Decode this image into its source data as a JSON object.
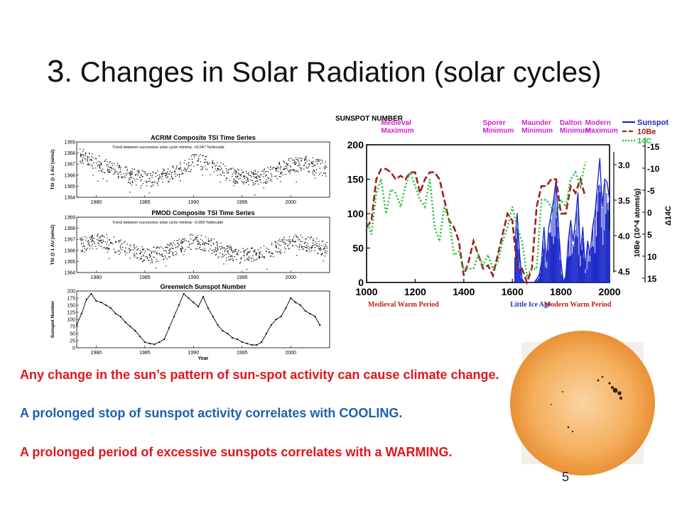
{
  "title": {
    "number": "3",
    "text": ". Changes in Solar Radiation (solar cycles)"
  },
  "body": {
    "line1": "Any change in the sun’s pattern of sun-spot activity can cause climate change.",
    "line2": "A prolonged stop of sunspot activity correlates with COOLING.",
    "line3": "A prolonged period of excessive sunspots correlates with a WARMING."
  },
  "slide_number": "5",
  "colors": {
    "text_red": "#e1161b",
    "text_blue": "#1f5fad",
    "series_sunspot": "#1a28c8",
    "series_be": "#a01e1e",
    "series_c": "#22c13b",
    "label_magenta": "#d61fd0"
  },
  "chart_data": [
    {
      "type": "scatter",
      "title": "ACRIM Composite TSI Time Series",
      "annotation": "Trend between successive solar cycle minima: +0.047 %/decade",
      "ylabel": "TSI @ 1 AU (w/m2)",
      "xticks": [
        "1980",
        "1985",
        "1990",
        "1995",
        "2000"
      ],
      "yticks": [
        "1364",
        "1365",
        "1366",
        "1367",
        "1368",
        "1369"
      ],
      "xlim": [
        1978,
        2004
      ],
      "ylim": [
        1364,
        1369
      ],
      "x": [
        1978.5,
        1979.5,
        1980.5,
        1981.5,
        1982.5,
        1983.5,
        1984.5,
        1985.5,
        1986.5,
        1987.5,
        1988.5,
        1989.5,
        1990.5,
        1991.5,
        1992.5,
        1993.5,
        1994.5,
        1995.5,
        1996.5,
        1997.5,
        1998.5,
        1999.5,
        2000.5,
        2001.5,
        2002.5,
        2003.5
      ],
      "values": [
        1367.8,
        1367.4,
        1367.0,
        1366.7,
        1366.3,
        1366.0,
        1365.8,
        1365.7,
        1365.8,
        1366.1,
        1366.6,
        1367.1,
        1367.3,
        1367.0,
        1366.6,
        1366.2,
        1365.9,
        1365.8,
        1365.8,
        1366.0,
        1366.4,
        1366.8,
        1367.0,
        1367.1,
        1366.9,
        1366.6
      ]
    },
    {
      "type": "scatter",
      "title": "PMOD Composite TSI Time Series",
      "annotation": "Trend between successive solar cycle minima: -0.009 %/decade",
      "ylabel": "TSI @ 1 AU (w/m2)",
      "xticks": [
        "1980",
        "1985",
        "1990",
        "1995",
        "2000"
      ],
      "yticks": [
        "1364",
        "1365",
        "1366",
        "1367",
        "1368",
        "1369"
      ],
      "xlim": [
        1978,
        2004
      ],
      "ylim": [
        1364,
        1369
      ],
      "x": [
        1978.5,
        1979.5,
        1980.5,
        1981.5,
        1982.5,
        1983.5,
        1984.5,
        1985.5,
        1986.5,
        1987.5,
        1988.5,
        1989.5,
        1990.5,
        1991.5,
        1992.5,
        1993.5,
        1994.5,
        1995.5,
        1996.5,
        1997.5,
        1998.5,
        1999.5,
        2000.5,
        2001.5,
        2002.5,
        2003.5
      ],
      "values": [
        1366.6,
        1366.8,
        1366.9,
        1366.7,
        1366.3,
        1366.0,
        1365.7,
        1365.6,
        1365.7,
        1366.0,
        1366.5,
        1366.8,
        1366.8,
        1366.6,
        1366.2,
        1365.9,
        1365.7,
        1365.6,
        1365.7,
        1365.9,
        1366.3,
        1366.6,
        1366.8,
        1366.7,
        1366.5,
        1366.2
      ]
    },
    {
      "type": "line",
      "title": "Greenwich Sunspot Number",
      "xlabel": "Year",
      "ylabel": "Sunspot Number",
      "xticks": [
        "1980",
        "1985",
        "1990",
        "1995",
        "2000"
      ],
      "yticks": [
        "0",
        "25",
        "50",
        "75",
        "100",
        "125",
        "150",
        "175",
        "200"
      ],
      "xlim": [
        1978,
        2004
      ],
      "ylim": [
        0,
        200
      ],
      "x": [
        1978.0,
        1978.5,
        1979.0,
        1979.5,
        1980.0,
        1980.5,
        1981.0,
        1981.5,
        1982.0,
        1982.5,
        1983.0,
        1983.5,
        1984.0,
        1984.5,
        1985.0,
        1985.5,
        1986.0,
        1986.5,
        1987.0,
        1987.5,
        1988.0,
        1988.5,
        1989.0,
        1989.5,
        1990.0,
        1990.5,
        1991.0,
        1991.5,
        1992.0,
        1992.5,
        1993.0,
        1993.5,
        1994.0,
        1994.5,
        1995.0,
        1995.5,
        1996.0,
        1996.5,
        1997.0,
        1997.5,
        1998.0,
        1998.5,
        1999.0,
        1999.5,
        2000.0,
        2000.5,
        2001.0,
        2001.5,
        2002.0,
        2002.5,
        2003.0
      ],
      "values": [
        80,
        120,
        170,
        190,
        165,
        160,
        150,
        140,
        120,
        110,
        90,
        75,
        60,
        40,
        20,
        15,
        12,
        20,
        30,
        70,
        110,
        150,
        190,
        175,
        160,
        145,
        180,
        140,
        110,
        80,
        60,
        50,
        35,
        30,
        20,
        15,
        10,
        10,
        20,
        50,
        80,
        100,
        110,
        140,
        175,
        160,
        150,
        130,
        120,
        110,
        80
      ]
    },
    {
      "type": "line",
      "title": "",
      "ylabel": "SUNSPOT NUMBER",
      "xticks": [
        "1000",
        "1200",
        "1400",
        "1600",
        "1800",
        "2000"
      ],
      "yticks": [
        "0",
        "50",
        "100",
        "150",
        "200"
      ],
      "right_axis_be": [
        "3.0",
        "3.5",
        "4.0",
        "4.5"
      ],
      "right_axis_be_label": "10Be (10^4 atoms/g)",
      "right_axis_c14": [
        "-15",
        "-10",
        "-5",
        "0",
        "5",
        "10",
        "15"
      ],
      "right_axis_c14_label": "Δ14C",
      "xlim": [
        1000,
        2000
      ],
      "ylim": [
        0,
        200
      ],
      "legend": {
        "position": "top-right",
        "entries": [
          "Sunspot",
          "10Be",
          "14C"
        ]
      },
      "period_labels": [
        "Medieval Maximum",
        "Sporer Minimum",
        "Maunder Minimum",
        "Dalton Minimum",
        "Modern Maximum"
      ],
      "era_labels": [
        "Medieval Warm Period",
        "Little Ice Age",
        "Modern Warm Period"
      ],
      "series": [
        {
          "name": "Sunspot",
          "x": [
            1610,
            1620,
            1630,
            1640,
            1650,
            1660,
            1670,
            1680,
            1690,
            1700,
            1710,
            1720,
            1730,
            1740,
            1750,
            1760,
            1770,
            1780,
            1790,
            1800,
            1810,
            1820,
            1830,
            1840,
            1850,
            1860,
            1870,
            1880,
            1890,
            1900,
            1910,
            1920,
            1930,
            1940,
            1950,
            1960,
            1970,
            1980,
            1990,
            2000
          ],
          "values": [
            60,
            100,
            40,
            5,
            0,
            0,
            0,
            0,
            0,
            5,
            10,
            30,
            80,
            30,
            80,
            100,
            120,
            150,
            80,
            30,
            0,
            10,
            60,
            90,
            60,
            90,
            130,
            40,
            80,
            20,
            60,
            40,
            80,
            100,
            140,
            180,
            110,
            150,
            145,
            120
          ]
        },
        {
          "name": "10Be",
          "x": [
            1000,
            1020,
            1040,
            1060,
            1080,
            1100,
            1120,
            1140,
            1160,
            1180,
            1200,
            1220,
            1240,
            1260,
            1280,
            1300,
            1320,
            1340,
            1360,
            1380,
            1400,
            1420,
            1440,
            1460,
            1480,
            1500,
            1520,
            1540,
            1560,
            1580,
            1600,
            1620,
            1640,
            1660,
            1680,
            1700,
            1720,
            1740,
            1760,
            1780,
            1800,
            1820,
            1840,
            1860,
            1880,
            1900
          ],
          "values": [
            80,
            90,
            150,
            165,
            165,
            160,
            150,
            155,
            150,
            160,
            160,
            130,
            150,
            160,
            160,
            150,
            120,
            90,
            80,
            60,
            10,
            30,
            60,
            40,
            20,
            25,
            10,
            40,
            70,
            100,
            90,
            20,
            20,
            0,
            20,
            110,
            140,
            140,
            150,
            150,
            100,
            100,
            140,
            130,
            150,
            125
          ]
        },
        {
          "name": "14C",
          "x": [
            1000,
            1020,
            1040,
            1060,
            1080,
            1100,
            1120,
            1140,
            1160,
            1180,
            1200,
            1220,
            1240,
            1260,
            1280,
            1300,
            1320,
            1340,
            1360,
            1380,
            1400,
            1420,
            1440,
            1460,
            1480,
            1500,
            1520,
            1540,
            1560,
            1580,
            1600,
            1620,
            1640,
            1660,
            1680,
            1700,
            1720,
            1740,
            1760,
            1780,
            1800,
            1820,
            1840,
            1860,
            1880,
            1900
          ],
          "values": [
            90,
            70,
            130,
            150,
            100,
            135,
            130,
            110,
            140,
            160,
            140,
            120,
            110,
            150,
            80,
            60,
            110,
            90,
            40,
            45,
            20,
            20,
            20,
            40,
            25,
            40,
            20,
            30,
            60,
            80,
            110,
            80,
            60,
            10,
            20,
            20,
            120,
            120,
            110,
            100,
            120,
            110,
            150,
            160,
            140,
            175
          ]
        }
      ]
    }
  ]
}
